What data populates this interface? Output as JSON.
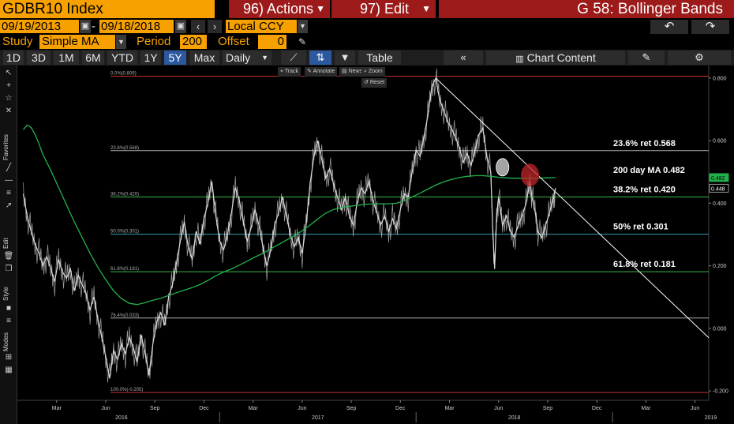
{
  "header": {
    "ticker": "GDBR10 Index",
    "actions_label": "96) Actions",
    "edit_label": "97) Edit",
    "study_title": "G 58: Bollinger Bands"
  },
  "dates": {
    "start": "09/19/2013",
    "separator": "-",
    "end": "09/18/2018",
    "currency": "Local CCY"
  },
  "study": {
    "label": "Study",
    "type": "Simple MA",
    "period_label": "Period",
    "period": "200",
    "offset_label": "Offset",
    "offset": "0"
  },
  "toolbar": {
    "ranges": [
      "1D",
      "3D",
      "1M",
      "6M",
      "YTD",
      "1Y",
      "5Y",
      "Max"
    ],
    "active_range": "5Y",
    "frequency": "Daily",
    "table_label": "Table",
    "chart_content_label": "Chart Content"
  },
  "mini_toolbar": {
    "track": "Track",
    "annotate": "Annotate",
    "news": "News",
    "zoom": "Zoom",
    "reset": "Reset"
  },
  "side_labels": [
    "Favorites",
    "Edit",
    "Style",
    "Modes"
  ],
  "colors": {
    "accent_orange": "#f6a100",
    "title_red": "#9c1a1a",
    "price_line": "#d9d9d9",
    "ma_line": "#22b24c",
    "trendline": "#ffffff",
    "fib_0": "#c0302f",
    "fib_236": "#b0b0b0",
    "fib_382": "#36b84a",
    "fib_50": "#3a9fb0",
    "fib_618": "#36b84a",
    "fib_764": "#b0b0b0",
    "fib_100": "#c0302f",
    "circle_white": "#cccccc",
    "circle_red": "#c0262a"
  },
  "icons": {
    "calendar": "calendar-icon",
    "prev": "chevron-left-icon",
    "next": "chevron-right-icon",
    "undo": "undo-icon",
    "redo": "redo-icon",
    "pencil": "pencil-icon",
    "collapse": "double-chevron-left-icon",
    "settings": "gear-icon",
    "chart_content": "chart-icon"
  },
  "chart_data": {
    "type": "line",
    "y_ticks": [
      "0.800",
      "0.600",
      "0.400",
      "0.200",
      "0.000",
      "-0.200"
    ],
    "ylim": [
      -0.23,
      0.84
    ],
    "x_month_ticks": [
      {
        "label": "Mar",
        "t": 2016.17
      },
      {
        "label": "Jun",
        "t": 2016.42
      },
      {
        "label": "Sep",
        "t": 2016.67
      },
      {
        "label": "Dec",
        "t": 2016.92
      },
      {
        "label": "Mar",
        "t": 2017.17
      },
      {
        "label": "Jun",
        "t": 2017.42
      },
      {
        "label": "Sep",
        "t": 2017.67
      },
      {
        "label": "Dec",
        "t": 2017.92
      },
      {
        "label": "Mar",
        "t": 2018.17
      },
      {
        "label": "Jun",
        "t": 2018.42
      },
      {
        "label": "Sep",
        "t": 2018.67
      },
      {
        "label": "Dec",
        "t": 2018.92
      },
      {
        "label": "Mar",
        "t": 2019.17
      },
      {
        "label": "Jun",
        "t": 2019.42
      }
    ],
    "x_year_labels": [
      {
        "label": "2016",
        "t": 2016.5
      },
      {
        "label": "2017",
        "t": 2017.5
      },
      {
        "label": "2018",
        "t": 2018.5
      },
      {
        "label": "2019",
        "t": 2019.5
      }
    ],
    "xlim": [
      2015.97,
      2019.49
    ],
    "fib_levels": [
      {
        "label": "0.0%(0.806)",
        "value": 0.806,
        "color_key": "fib_0"
      },
      {
        "label": "23.6%(0.568)",
        "value": 0.568,
        "color_key": "fib_236"
      },
      {
        "label": "38.2%(0.420)",
        "value": 0.42,
        "color_key": "fib_382"
      },
      {
        "label": "50.0%(0.301)",
        "value": 0.301,
        "color_key": "fib_50"
      },
      {
        "label": "61.8%(0.181)",
        "value": 0.181,
        "color_key": "fib_618"
      },
      {
        "label": "76.4%(0.033)",
        "value": 0.033,
        "color_key": "fib_764"
      },
      {
        "label": "100.0%(-0.205)",
        "value": -0.205,
        "color_key": "fib_100"
      }
    ],
    "annotations": [
      {
        "text": "23.6% ret 0.568",
        "value": 0.568
      },
      {
        "text": "200 day MA 0.482",
        "value": 0.482
      },
      {
        "text": "38.2% ret 0.420",
        "value": 0.42
      },
      {
        "text": "50% ret 0.301",
        "value": 0.301
      },
      {
        "text": "61.8% ret 0.181",
        "value": 0.181
      }
    ],
    "last_values": [
      {
        "label": "0.482",
        "value": 0.482,
        "series": "ma"
      },
      {
        "label": "0.448",
        "value": 0.448,
        "series": "price"
      }
    ],
    "price_series": [
      [
        2016.0,
        0.43
      ],
      [
        2016.02,
        0.36
      ],
      [
        2016.04,
        0.31
      ],
      [
        2016.06,
        0.27
      ],
      [
        2016.08,
        0.24
      ],
      [
        2016.1,
        0.2
      ],
      [
        2016.12,
        0.23
      ],
      [
        2016.14,
        0.19
      ],
      [
        2016.16,
        0.15
      ],
      [
        2016.18,
        0.22
      ],
      [
        2016.2,
        0.18
      ],
      [
        2016.22,
        0.16
      ],
      [
        2016.24,
        0.19
      ],
      [
        2016.26,
        0.12
      ],
      [
        2016.28,
        0.17
      ],
      [
        2016.3,
        0.14
      ],
      [
        2016.32,
        0.11
      ],
      [
        2016.34,
        0.06
      ],
      [
        2016.36,
        0.1
      ],
      [
        2016.38,
        0.03
      ],
      [
        2016.4,
        -0.03
      ],
      [
        2016.42,
        -0.09
      ],
      [
        2016.44,
        -0.16
      ],
      [
        2016.46,
        -0.07
      ],
      [
        2016.48,
        -0.1
      ],
      [
        2016.5,
        -0.05
      ],
      [
        2016.52,
        -0.08
      ],
      [
        2016.54,
        -0.03
      ],
      [
        2016.56,
        -0.06
      ],
      [
        2016.58,
        -0.11
      ],
      [
        2016.6,
        -0.02
      ],
      [
        2016.62,
        -0.08
      ],
      [
        2016.64,
        -0.15
      ],
      [
        2016.66,
        -0.05
      ],
      [
        2016.68,
        0.02
      ],
      [
        2016.7,
        0.05
      ],
      [
        2016.72,
        0.01
      ],
      [
        2016.74,
        0.1
      ],
      [
        2016.76,
        0.14
      ],
      [
        2016.78,
        0.21
      ],
      [
        2016.8,
        0.28
      ],
      [
        2016.82,
        0.34
      ],
      [
        2016.84,
        0.26
      ],
      [
        2016.86,
        0.22
      ],
      [
        2016.88,
        0.31
      ],
      [
        2016.9,
        0.27
      ],
      [
        2016.92,
        0.35
      ],
      [
        2016.94,
        0.4
      ],
      [
        2016.96,
        0.47
      ],
      [
        2016.98,
        0.36
      ],
      [
        2017.0,
        0.28
      ],
      [
        2017.02,
        0.25
      ],
      [
        2017.04,
        0.3
      ],
      [
        2017.06,
        0.37
      ],
      [
        2017.08,
        0.45
      ],
      [
        2017.1,
        0.41
      ],
      [
        2017.12,
        0.34
      ],
      [
        2017.14,
        0.28
      ],
      [
        2017.16,
        0.32
      ],
      [
        2017.18,
        0.38
      ],
      [
        2017.2,
        0.33
      ],
      [
        2017.22,
        0.26
      ],
      [
        2017.24,
        0.2
      ],
      [
        2017.26,
        0.25
      ],
      [
        2017.28,
        0.33
      ],
      [
        2017.3,
        0.37
      ],
      [
        2017.32,
        0.42
      ],
      [
        2017.34,
        0.36
      ],
      [
        2017.36,
        0.3
      ],
      [
        2017.38,
        0.26
      ],
      [
        2017.4,
        0.29
      ],
      [
        2017.42,
        0.24
      ],
      [
        2017.44,
        0.33
      ],
      [
        2017.46,
        0.46
      ],
      [
        2017.48,
        0.55
      ],
      [
        2017.5,
        0.6
      ],
      [
        2017.52,
        0.54
      ],
      [
        2017.54,
        0.48
      ],
      [
        2017.56,
        0.51
      ],
      [
        2017.58,
        0.46
      ],
      [
        2017.6,
        0.42
      ],
      [
        2017.62,
        0.38
      ],
      [
        2017.64,
        0.42
      ],
      [
        2017.66,
        0.36
      ],
      [
        2017.68,
        0.33
      ],
      [
        2017.7,
        0.4
      ],
      [
        2017.72,
        0.45
      ],
      [
        2017.74,
        0.43
      ],
      [
        2017.76,
        0.47
      ],
      [
        2017.78,
        0.41
      ],
      [
        2017.8,
        0.37
      ],
      [
        2017.82,
        0.33
      ],
      [
        2017.84,
        0.36
      ],
      [
        2017.86,
        0.31
      ],
      [
        2017.88,
        0.35
      ],
      [
        2017.9,
        0.32
      ],
      [
        2017.92,
        0.38
      ],
      [
        2017.94,
        0.43
      ],
      [
        2017.96,
        0.42
      ],
      [
        2017.98,
        0.5
      ],
      [
        2018.0,
        0.57
      ],
      [
        2018.02,
        0.55
      ],
      [
        2018.04,
        0.61
      ],
      [
        2018.06,
        0.68
      ],
      [
        2018.08,
        0.77
      ],
      [
        2018.1,
        0.8
      ],
      [
        2018.12,
        0.73
      ],
      [
        2018.14,
        0.7
      ],
      [
        2018.16,
        0.66
      ],
      [
        2018.18,
        0.64
      ],
      [
        2018.2,
        0.61
      ],
      [
        2018.22,
        0.58
      ],
      [
        2018.24,
        0.53
      ],
      [
        2018.26,
        0.56
      ],
      [
        2018.28,
        0.52
      ],
      [
        2018.3,
        0.57
      ],
      [
        2018.32,
        0.62
      ],
      [
        2018.34,
        0.64
      ],
      [
        2018.36,
        0.55
      ],
      [
        2018.38,
        0.5
      ],
      [
        2018.39,
        0.32
      ],
      [
        2018.4,
        0.19
      ],
      [
        2018.41,
        0.36
      ],
      [
        2018.42,
        0.42
      ],
      [
        2018.44,
        0.33
      ],
      [
        2018.46,
        0.36
      ],
      [
        2018.48,
        0.31
      ],
      [
        2018.5,
        0.29
      ],
      [
        2018.52,
        0.33
      ],
      [
        2018.54,
        0.36
      ],
      [
        2018.56,
        0.4
      ],
      [
        2018.58,
        0.47
      ],
      [
        2018.59,
        0.42
      ],
      [
        2018.61,
        0.36
      ],
      [
        2018.62,
        0.31
      ],
      [
        2018.64,
        0.29
      ],
      [
        2018.66,
        0.33
      ],
      [
        2018.68,
        0.37
      ],
      [
        2018.7,
        0.42
      ],
      [
        2018.71,
        0.448
      ]
    ],
    "ma_series": [
      [
        2016.0,
        0.635
      ],
      [
        2016.02,
        0.65
      ],
      [
        2016.04,
        0.642
      ],
      [
        2016.06,
        0.62
      ],
      [
        2016.08,
        0.59
      ],
      [
        2016.1,
        0.555
      ],
      [
        2016.14,
        0.505
      ],
      [
        2016.18,
        0.45
      ],
      [
        2016.22,
        0.395
      ],
      [
        2016.26,
        0.34
      ],
      [
        2016.3,
        0.29
      ],
      [
        2016.34,
        0.24
      ],
      [
        2016.38,
        0.195
      ],
      [
        2016.42,
        0.155
      ],
      [
        2016.46,
        0.12
      ],
      [
        2016.5,
        0.095
      ],
      [
        2016.54,
        0.08
      ],
      [
        2016.58,
        0.076
      ],
      [
        2016.62,
        0.082
      ],
      [
        2016.66,
        0.09
      ],
      [
        2016.7,
        0.096
      ],
      [
        2016.74,
        0.105
      ],
      [
        2016.78,
        0.114
      ],
      [
        2016.82,
        0.122
      ],
      [
        2016.86,
        0.13
      ],
      [
        2016.9,
        0.14
      ],
      [
        2016.94,
        0.153
      ],
      [
        2016.98,
        0.168
      ],
      [
        2017.02,
        0.18
      ],
      [
        2017.06,
        0.19
      ],
      [
        2017.1,
        0.202
      ],
      [
        2017.14,
        0.215
      ],
      [
        2017.18,
        0.228
      ],
      [
        2017.22,
        0.24
      ],
      [
        2017.26,
        0.254
      ],
      [
        2017.3,
        0.268
      ],
      [
        2017.34,
        0.282
      ],
      [
        2017.38,
        0.296
      ],
      [
        2017.42,
        0.312
      ],
      [
        2017.46,
        0.33
      ],
      [
        2017.5,
        0.35
      ],
      [
        2017.54,
        0.368
      ],
      [
        2017.58,
        0.38
      ],
      [
        2017.62,
        0.386
      ],
      [
        2017.66,
        0.39
      ],
      [
        2017.7,
        0.393
      ],
      [
        2017.74,
        0.396
      ],
      [
        2017.78,
        0.398
      ],
      [
        2017.82,
        0.398
      ],
      [
        2017.86,
        0.398
      ],
      [
        2017.9,
        0.4
      ],
      [
        2017.94,
        0.408
      ],
      [
        2017.98,
        0.42
      ],
      [
        2018.02,
        0.432
      ],
      [
        2018.06,
        0.445
      ],
      [
        2018.1,
        0.458
      ],
      [
        2018.14,
        0.468
      ],
      [
        2018.18,
        0.476
      ],
      [
        2018.22,
        0.482
      ],
      [
        2018.26,
        0.486
      ],
      [
        2018.3,
        0.488
      ],
      [
        2018.34,
        0.488
      ],
      [
        2018.38,
        0.486
      ],
      [
        2018.42,
        0.483
      ],
      [
        2018.46,
        0.481
      ],
      [
        2018.5,
        0.48
      ],
      [
        2018.54,
        0.48
      ],
      [
        2018.58,
        0.48
      ],
      [
        2018.62,
        0.48
      ],
      [
        2018.66,
        0.481
      ],
      [
        2018.71,
        0.482
      ]
    ],
    "trendline": [
      [
        2018.1,
        0.8
      ],
      [
        2019.49,
        -0.03
      ]
    ],
    "circles": [
      {
        "t": 2018.44,
        "value": 0.515,
        "color_key": "circle_white"
      },
      {
        "t": 2018.58,
        "value": 0.49,
        "color_key": "circle_red"
      }
    ]
  }
}
